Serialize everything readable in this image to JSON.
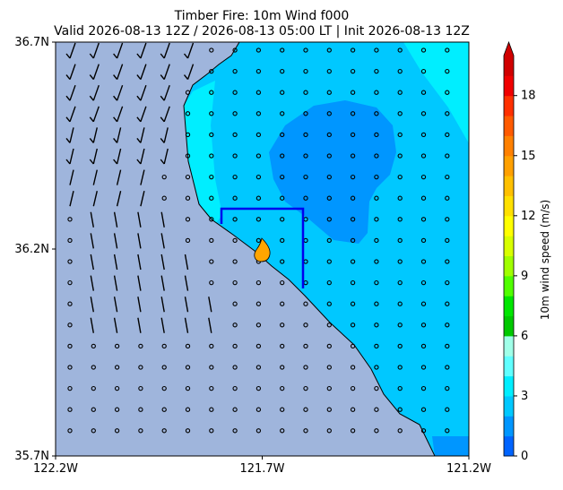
{
  "chart_data": {
    "type": "heatmap",
    "title_line1": "Timber Fire: 10m Wind f000",
    "title_line2": "Valid 2026-08-13 12Z / 2026-08-13 05:00 LT | Init 2026-08-13 12Z",
    "x_ticks": [
      {
        "value": -122.2,
        "label": "122.2W"
      },
      {
        "value": -121.7,
        "label": "121.7W"
      },
      {
        "value": -121.2,
        "label": "121.2W"
      }
    ],
    "y_ticks": [
      {
        "value": 36.7,
        "label": "36.7N"
      },
      {
        "value": 36.2,
        "label": "36.2N"
      },
      {
        "value": 35.7,
        "label": "35.7N"
      }
    ],
    "xlim": [
      -122.2,
      -121.2
    ],
    "ylim": [
      35.7,
      36.7
    ],
    "colorbar": {
      "label": "10m wind speed (m/s)",
      "range": [
        0,
        20
      ],
      "extend": "max",
      "ticks": [
        0,
        3,
        6,
        9,
        12,
        15,
        18
      ],
      "levels": [
        0,
        1,
        2,
        3,
        4,
        5,
        6,
        7,
        8,
        9,
        10,
        11,
        12,
        13,
        14,
        15,
        16,
        17,
        18,
        19,
        20
      ],
      "colors": [
        "#0064ff",
        "#0096ff",
        "#00c8ff",
        "#00eeff",
        "#60ffff",
        "#a0ffe8",
        "#00c800",
        "#00e600",
        "#50ff00",
        "#a0ff00",
        "#d8ff00",
        "#ffff00",
        "#ffe000",
        "#ffc000",
        "#ffa000",
        "#ff8000",
        "#ff5a00",
        "#ff3000",
        "#f00000",
        "#d00000"
      ]
    },
    "fire_location": {
      "lon": -121.69,
      "lat": 36.2
    },
    "box_region": {
      "lon": [
        -121.8,
        -121.6
      ],
      "lat": [
        36.08,
        36.31
      ]
    }
  },
  "colors": {
    "land": "#9fb5dc",
    "speed_0_1": "#0064ff",
    "speed_1_2": "#0096ff",
    "speed_2_3": "#00c8ff",
    "speed_3_4": "#00eeff",
    "box": "#0000ee",
    "fire": "#ffa500"
  }
}
